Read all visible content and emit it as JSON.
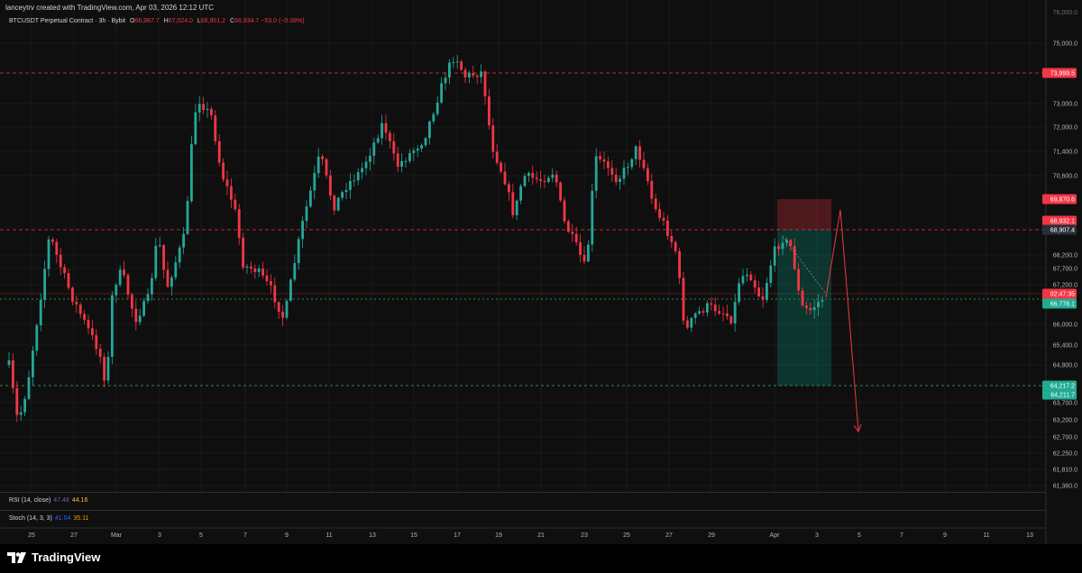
{
  "header": {
    "credit": "lanceytrv created with TradingView.com, Apr 03, 2026 12:12 UTC"
  },
  "legend": {
    "symbol": "BTCUSDT Perpetual Contract · 3h · Bybit",
    "o_label": "O",
    "open": "66,987.7",
    "h_label": "H",
    "high": "67,024.0",
    "l_label": "L",
    "low": "66,901.2",
    "c_label": "C",
    "close": "66,934.7",
    "change": "−53.0 (−0.08%)"
  },
  "price_axis": {
    "labels": [
      "75,000.0",
      "73,000.0",
      "72,000.0",
      "71,400.0",
      "70,600.0",
      "68,200.0",
      "67,700.0",
      "67,200.0",
      "66,000.0",
      "65,400.0",
      "64,800.0",
      "63,700.0",
      "63,200.0",
      "62,700.0",
      "62,250.0",
      "61,810.0",
      "61,360.0"
    ],
    "top_partial": "76,000.0"
  },
  "price_tags": {
    "resistance": "73,999.5",
    "stop": "69,870.6",
    "entry_a": "68,932.1",
    "entry_b": "68,907.4",
    "countdown": "02:47:35",
    "current": "66,778.1",
    "target_a": "64,217.2",
    "target_b": "64,211.7"
  },
  "time_axis": {
    "labels": [
      "25",
      "27",
      "Mar",
      "3",
      "5",
      "7",
      "9",
      "11",
      "13",
      "15",
      "17",
      "19",
      "21",
      "23",
      "25",
      "27",
      "29",
      "Apr",
      "3",
      "5",
      "7",
      "9",
      "11",
      "13"
    ]
  },
  "indicators": {
    "rsi": {
      "label": "RSI (14, close)",
      "v1": "47.48",
      "v2": "44.16"
    },
    "stoch": {
      "label": "Stoch (14, 3, 3)",
      "v1": "41.04",
      "v2": "35.11"
    }
  },
  "brand": {
    "name": "TradingView"
  },
  "colors": {
    "up": "#26a69a",
    "down": "#f23645",
    "background": "#0f0f0f"
  }
}
